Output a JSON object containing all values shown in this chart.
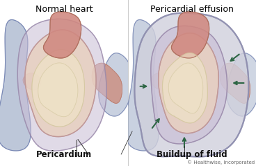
{
  "title_left": "Normal heart",
  "title_right": "Pericardial effusion",
  "label_left": "Pericardium",
  "label_right": "Buildup of fluid",
  "copyright": "© Healthwise, Incorporated",
  "bg_color": "#ffffff",
  "heart_outer_color": "#c8bcd4",
  "heart_outer_edge": "#9988aa",
  "heart_body_color": "#e8d0c0",
  "heart_body_edge": "#c09898",
  "aorta_color": "#d08880",
  "aorta_edge": "#b07060",
  "vessel_blue_color": "#8899bb",
  "vessel_blue_edge": "#6677aa",
  "red_tissue_color": "#cc8877",
  "tissue_inner_color": "#f0e4c8",
  "tissue_edge_color": "#d4c8a0",
  "effusion_sac_color": "#d0d0dc",
  "effusion_sac_edge": "#9090b0",
  "effusion_fluid_color": "#c8c8d8",
  "arrow_color": "#2d6644",
  "label_color": "#111111",
  "line_color": "#333333",
  "title_fontsize": 9,
  "label_fontsize": 8.5,
  "copyright_fontsize": 5
}
